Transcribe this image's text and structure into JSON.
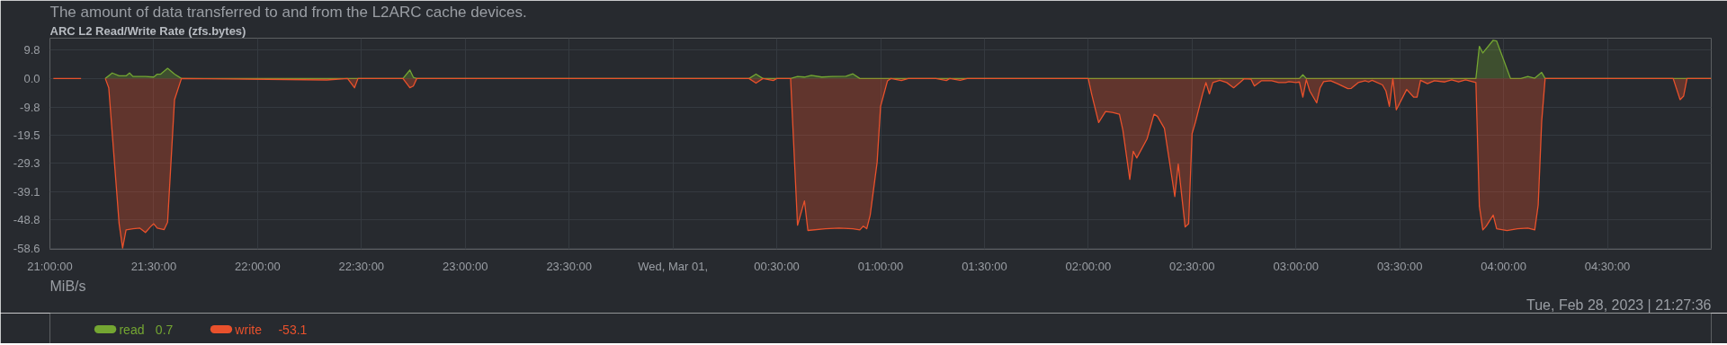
{
  "chart_data": {
    "type": "area",
    "subtitle": "The amount of data transferred to and from the L2ARC cache devices.",
    "title": "ARC L2 Read/Write Rate (zfs.bytes)",
    "annotations": [
      "MiB/s",
      "Tue, Feb 28, 2023 | 21:27:36",
      "0.7",
      "-53.1"
    ],
    "series": [
      {
        "name": "read",
        "color": "#74a632",
        "x": [
          "2023-02-28T21:16",
          "2023-02-28T21:18",
          "2023-02-28T21:20",
          "2023-02-28T21:22",
          "2023-02-28T21:23",
          "2023-02-28T21:24",
          "2023-02-28T21:27:36",
          "2023-02-28T21:30",
          "2023-02-28T21:31",
          "2023-02-28T21:32",
          "2023-02-28T21:34",
          "2023-02-28T21:36",
          "2023-02-28T21:38",
          "2023-02-28T22:42",
          "2023-02-28T22:44",
          "2023-02-28T22:45",
          "2023-02-28T22:46",
          "2023-03-01T00:22",
          "2023-03-01T00:24",
          "2023-03-01T00:26",
          "2023-03-01T00:34",
          "2023-03-01T00:36",
          "2023-03-01T00:38",
          "2023-03-01T00:40",
          "2023-03-01T00:43",
          "2023-03-01T00:46",
          "2023-03-01T00:50",
          "2023-03-01T00:52",
          "2023-03-01T00:54",
          "2023-03-01T03:01",
          "2023-03-01T03:02",
          "2023-03-01T03:03",
          "2023-03-01T03:52",
          "2023-03-01T03:53",
          "2023-03-01T03:54",
          "2023-03-01T03:57",
          "2023-03-01T03:58",
          "2023-03-01T04:02",
          "2023-03-01T04:05",
          "2023-03-01T04:07",
          "2023-03-01T04:09",
          "2023-03-01T04:11",
          "2023-03-01T04:12",
          "2023-03-01T05:00"
        ],
        "values": [
          0,
          1.9,
          0.9,
          0.9,
          1.9,
          0.7,
          0.7,
          0.5,
          1.5,
          1.5,
          3.5,
          1.5,
          0,
          0,
          2.9,
          0.4,
          0,
          0,
          1.5,
          0,
          0,
          0.7,
          0.5,
          1.1,
          0.5,
          0.7,
          0.8,
          1.6,
          0,
          0,
          1.3,
          0,
          0,
          11.1,
          8.8,
          13.2,
          12.9,
          0,
          0,
          0.7,
          0.1,
          2.1,
          0,
          0
        ]
      },
      {
        "name": "write",
        "color": "#e9512c",
        "x": [
          "2023-02-28T21:01",
          "2023-02-28T21:09",
          "2023-02-28T21:12",
          "2023-02-28T21:16",
          "2023-02-28T21:17",
          "2023-02-28T21:20",
          "2023-02-28T21:21",
          "2023-02-28T21:22",
          "2023-02-28T21:24",
          "2023-02-28T21:26",
          "2023-02-28T21:27:36",
          "2023-02-28T21:29",
          "2023-02-28T21:30",
          "2023-02-28T21:31",
          "2023-02-28T21:33",
          "2023-02-28T21:34",
          "2023-02-28T21:36",
          "2023-02-28T21:38",
          "2023-02-28T22:20",
          "2023-02-28T22:26",
          "2023-02-28T22:28",
          "2023-02-28T22:29",
          "2023-02-28T22:42",
          "2023-02-28T22:44",
          "2023-02-28T22:45",
          "2023-02-28T22:46",
          "2023-03-01T00:22",
          "2023-03-01T00:24",
          "2023-03-01T00:26",
          "2023-03-01T00:29",
          "2023-03-01T00:30",
          "2023-03-01T00:34",
          "2023-03-01T00:36",
          "2023-03-01T00:38",
          "2023-03-01T00:39",
          "2023-03-01T00:44",
          "2023-03-01T00:48",
          "2023-03-01T00:52",
          "2023-03-01T00:54",
          "2023-03-01T00:55",
          "2023-03-01T00:56",
          "2023-03-01T00:57",
          "2023-03-01T00:59",
          "2023-03-01T01:00",
          "2023-03-01T01:02",
          "2023-03-01T01:03",
          "2023-03-01T01:06",
          "2023-03-01T01:08",
          "2023-03-01T01:16",
          "2023-03-01T01:19",
          "2023-03-01T01:20",
          "2023-03-01T01:23",
          "2023-03-01T01:25",
          "2023-03-01T02:00",
          "2023-03-01T02:01",
          "2023-03-01T02:03",
          "2023-03-01T02:05",
          "2023-03-01T02:07",
          "2023-03-01T02:09",
          "2023-03-01T02:10",
          "2023-03-01T02:12",
          "2023-03-01T02:13",
          "2023-03-01T02:14",
          "2023-03-01T02:17",
          "2023-03-01T02:19",
          "2023-03-01T02:20",
          "2023-03-01T02:22",
          "2023-03-01T02:25",
          "2023-03-01T02:26",
          "2023-03-01T02:28",
          "2023-03-01T02:29",
          "2023-03-01T02:30",
          "2023-03-01T02:31",
          "2023-03-01T02:33",
          "2023-03-01T02:34",
          "2023-03-01T02:35",
          "2023-03-01T02:36",
          "2023-03-01T02:38",
          "2023-03-01T02:40",
          "2023-03-01T02:42",
          "2023-03-01T02:44",
          "2023-03-01T02:45",
          "2023-03-01T02:47",
          "2023-03-01T02:48",
          "2023-03-01T02:50",
          "2023-03-01T02:53",
          "2023-03-01T02:55",
          "2023-03-01T02:57",
          "2023-03-01T02:58",
          "2023-03-01T03:00",
          "2023-03-01T03:01",
          "2023-03-01T03:02",
          "2023-03-01T03:03",
          "2023-03-01T03:04",
          "2023-03-01T03:06",
          "2023-03-01T03:07",
          "2023-03-01T03:08",
          "2023-03-01T03:10",
          "2023-03-01T03:12",
          "2023-03-01T03:15",
          "2023-03-01T03:16",
          "2023-03-01T03:18",
          "2023-03-01T03:20",
          "2023-03-01T03:21",
          "2023-03-01T03:22",
          "2023-03-01T03:25",
          "2023-03-01T03:26",
          "2023-03-01T03:27",
          "2023-03-01T03:28",
          "2023-03-01T03:29",
          "2023-03-01T03:32",
          "2023-03-01T03:34",
          "2023-03-01T03:35",
          "2023-03-01T03:36",
          "2023-03-01T03:38",
          "2023-03-01T03:40",
          "2023-03-01T03:43",
          "2023-03-01T03:45",
          "2023-03-01T03:47",
          "2023-03-01T03:49",
          "2023-03-01T03:50",
          "2023-03-01T03:52",
          "2023-03-01T03:53",
          "2023-03-01T03:54",
          "2023-03-01T03:55",
          "2023-03-01T03:57",
          "2023-03-01T03:58",
          "2023-03-01T04:01",
          "2023-03-01T04:04",
          "2023-03-01T04:07",
          "2023-03-01T04:09",
          "2023-03-01T04:10",
          "2023-03-01T04:11",
          "2023-03-01T04:12",
          "2023-03-01T04:49",
          "2023-03-01T04:51",
          "2023-03-01T04:52",
          "2023-03-01T04:53",
          "2023-03-01T05:00"
        ],
        "values": [
          0,
          0,
          null,
          0,
          -3.2,
          -50.1,
          -58.5,
          -52.2,
          -51.8,
          -51.6,
          -53.1,
          -51.2,
          -50.1,
          -51.6,
          -52.1,
          -49.5,
          -7.3,
          0,
          -0.5,
          0,
          -3.2,
          0,
          0,
          -3.2,
          -2.6,
          0,
          0,
          -1.6,
          0,
          -0.7,
          0,
          0,
          -50.6,
          -42.2,
          -52.4,
          -51.8,
          -51.6,
          -51.8,
          -52.2,
          -50.9,
          -51.8,
          -47.1,
          -28.9,
          -9.6,
          -0.8,
          0,
          -0.7,
          0,
          0,
          -0.7,
          0,
          -0.6,
          0,
          0,
          -5.5,
          -15.2,
          -11.4,
          -11.7,
          -12.3,
          -17.8,
          -34.8,
          -25.1,
          -27.4,
          -20.8,
          -12.3,
          -13.1,
          -17.2,
          -40.7,
          -29.5,
          -51.2,
          -50.1,
          -19.0,
          -14.9,
          -5.5,
          -1.4,
          -5.3,
          -1.4,
          -0.6,
          -1.4,
          -3.2,
          -1.2,
          -0.1,
          -0.2,
          -2.6,
          -0.8,
          -0.8,
          -1.4,
          -1.4,
          -1.1,
          -1.4,
          -1.2,
          -6.4,
          -0.4,
          -4.3,
          -8.4,
          -3.2,
          -1.1,
          -0.8,
          -1.8,
          -3.5,
          -3.4,
          -1.4,
          -0.8,
          -1.2,
          -0.6,
          -2.2,
          -4.3,
          -9.6,
          0,
          -10.8,
          -3.8,
          -6.4,
          -6.4,
          -0.6,
          -1.8,
          -0.8,
          -1.2,
          -0.5,
          -1.2,
          -0.5,
          -0.8,
          -1.4,
          -44.0,
          -52.2,
          -50.9,
          -47.1,
          -51.8,
          -52.4,
          -51.8,
          -51.6,
          -52.2,
          -43.6,
          -14.9,
          0,
          0,
          -7.3,
          -6.1,
          0,
          0
        ]
      }
    ],
    "xlim": [
      "2023-02-28T21:00",
      "2023-03-01T05:00"
    ],
    "xticks": [
      {
        "value": "2023-02-28T21:00",
        "label": "21:00:00"
      },
      {
        "value": "2023-02-28T21:30",
        "label": "21:30:00"
      },
      {
        "value": "2023-02-28T22:00",
        "label": "22:00:00"
      },
      {
        "value": "2023-02-28T22:30",
        "label": "22:30:00"
      },
      {
        "value": "2023-02-28T23:00",
        "label": "23:00:00"
      },
      {
        "value": "2023-02-28T23:30",
        "label": "23:30:00"
      },
      {
        "value": "2023-03-01T00:00",
        "label": "Wed, Mar 01,"
      },
      {
        "value": "2023-03-01T00:30",
        "label": "00:30:00"
      },
      {
        "value": "2023-03-01T01:00",
        "label": "01:00:00"
      },
      {
        "value": "2023-03-01T01:30",
        "label": "01:30:00"
      },
      {
        "value": "2023-03-01T02:00",
        "label": "02:00:00"
      },
      {
        "value": "2023-03-01T02:30",
        "label": "02:30:00"
      },
      {
        "value": "2023-03-01T03:00",
        "label": "03:00:00"
      },
      {
        "value": "2023-03-01T03:30",
        "label": "03:30:00"
      },
      {
        "value": "2023-03-01T04:00",
        "label": "04:00:00"
      },
      {
        "value": "2023-03-01T04:30",
        "label": "04:30:00"
      }
    ],
    "ylim": [
      -58.9,
      13.9
    ],
    "yticks": [
      {
        "value": 9.8,
        "label": "9.8"
      },
      {
        "value": 0,
        "label": "0.0"
      },
      {
        "value": -9.8,
        "label": "-9.8"
      },
      {
        "value": -19.5,
        "label": "-19.5"
      },
      {
        "value": -29.3,
        "label": "-29.3"
      },
      {
        "value": -39.1,
        "label": "-39.1"
      },
      {
        "value": -48.8,
        "label": "-48.8"
      },
      {
        "value": -58.6,
        "label": "-58.6"
      }
    ],
    "grid": true,
    "legend": "bottom left"
  }
}
